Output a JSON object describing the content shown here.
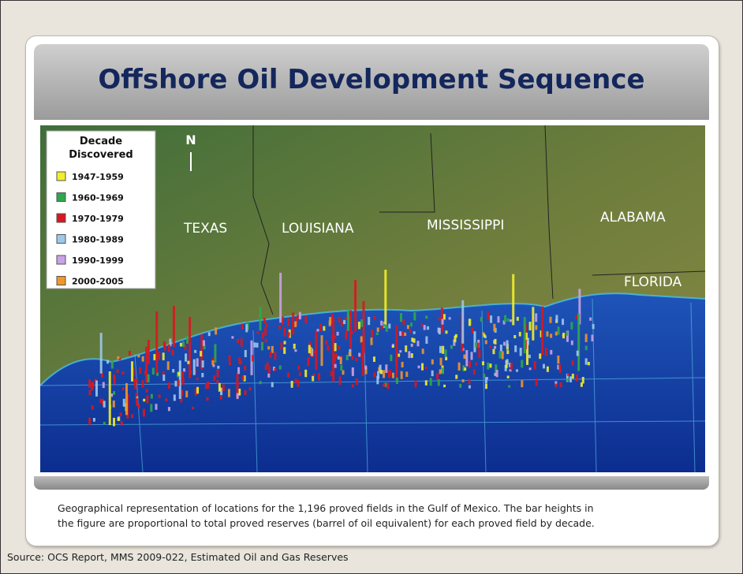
{
  "header": {
    "title": "Offshore Oil Development Sequence"
  },
  "map": {
    "north_label": "N",
    "legend": {
      "title_lines": [
        "Decade",
        "Discovered"
      ],
      "items": [
        {
          "label": "1947-1959",
          "color": "#f2ee2a"
        },
        {
          "label": "1960-1969",
          "color": "#2fa84a"
        },
        {
          "label": "1970-1979",
          "color": "#d9171f"
        },
        {
          "label": "1980-1989",
          "color": "#9cc8ea"
        },
        {
          "label": "1990-1999",
          "color": "#c9a3e6"
        },
        {
          "label": "2000-2005",
          "color": "#f0962a"
        }
      ]
    },
    "states": [
      "TEXAS",
      "LOUISIANA",
      "MISSISSIPPI",
      "ALABAMA",
      "FLORIDA"
    ]
  },
  "caption": {
    "lines": [
      "Geographical representation of locations for the 1,196 proved fields in the Gulf of Mexico. The bar heights in",
      "the figure are proportional to total proved reserves (barrel of oil equivalent) for each proved field by decade."
    ]
  },
  "source": "Source: OCS Report, MMS 2009-022, Estimated Oil and Gas Reserves"
}
